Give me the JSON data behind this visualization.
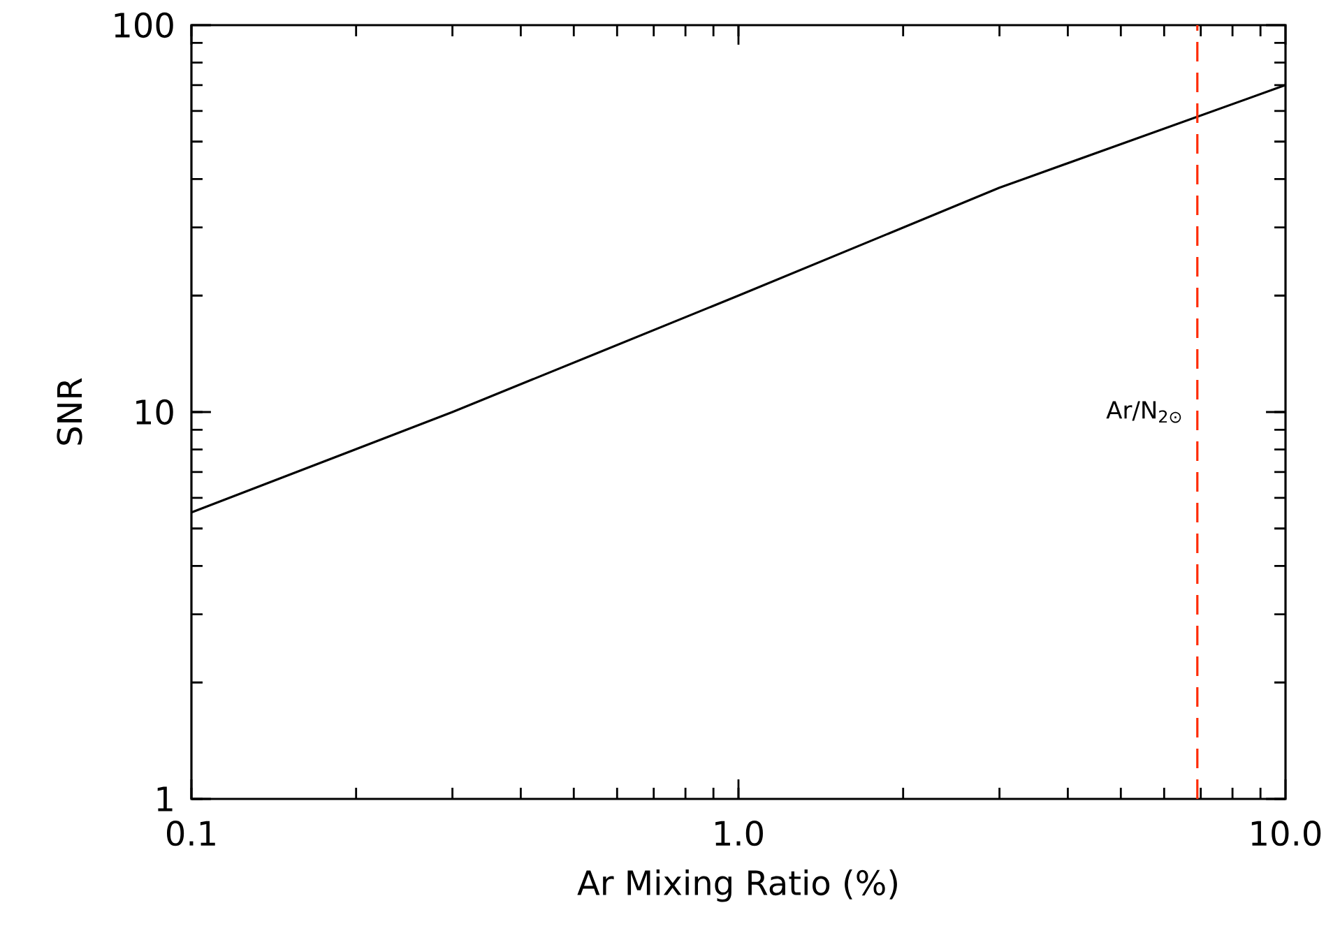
{
  "chart_data": {
    "type": "line",
    "xlabel": "Ar Mixing Ratio (%)",
    "ylabel": "SNR",
    "log": "xy",
    "grid": false,
    "marker": "none",
    "line_style": "solid",
    "x": [
      0.1,
      0.3,
      1.0,
      3.0,
      10.0
    ],
    "series": [
      {
        "color": "#000000",
        "values": [
          5.5,
          10,
          20,
          38,
          70
        ]
      }
    ],
    "xlim": [
      0.1,
      10.0
    ],
    "ylim": [
      1,
      100
    ],
    "xticks": [
      0.1,
      {
        "value": 1.0,
        "label": "1.0"
      },
      {
        "value": 10.0,
        "label": "10.0"
      }
    ],
    "yticks": [
      1,
      10,
      100
    ],
    "ref_lines": [
      {
        "axis": "x",
        "value": 6.9,
        "label": "Ar/N$_{2⊙}$",
        "color": "#ff2a00",
        "line_style": "dashed"
      }
    ]
  }
}
